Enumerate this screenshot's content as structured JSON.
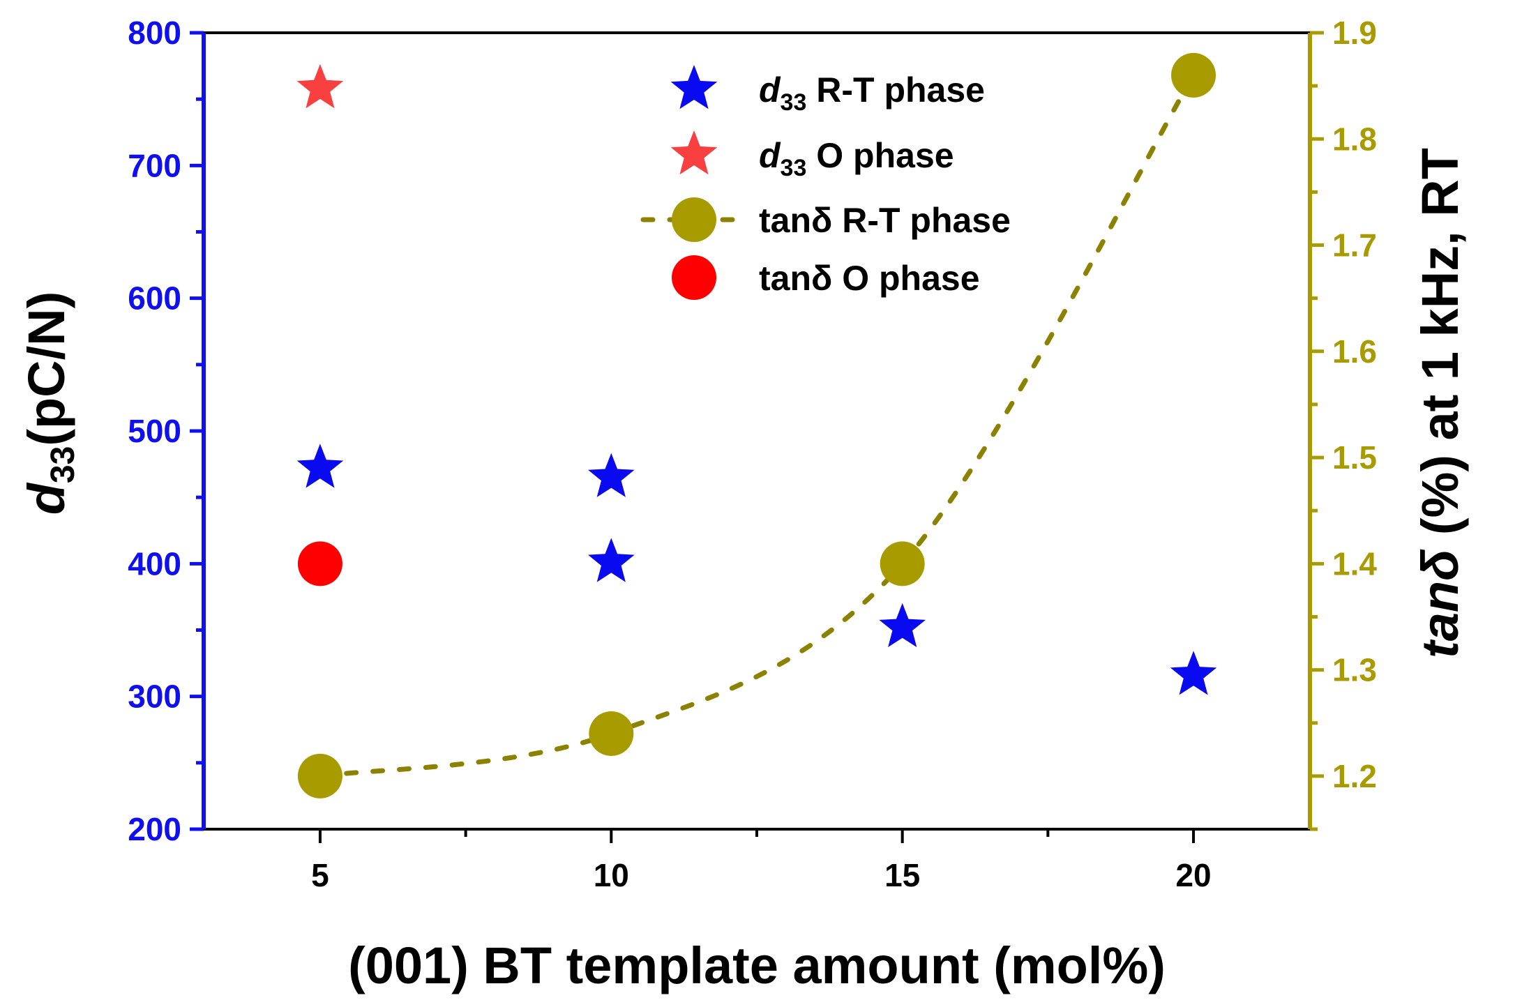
{
  "chart_data": {
    "type": "scatter",
    "xlabel": "(001) BT template amount (mol%)",
    "ylabel_left_symbol": "d",
    "ylabel_left_sub": "33",
    "ylabel_left_rest": "(pC/N)",
    "ylabel_right_symbol": "tanδ",
    "ylabel_right_rest": " (%) at 1 kHz, RT",
    "x_ticks": [
      "5",
      "10",
      "15",
      "20"
    ],
    "x_tick_values": [
      5,
      10,
      15,
      20
    ],
    "xlim": [
      3,
      22
    ],
    "ylim_left": [
      200,
      800
    ],
    "y_left_ticks": [
      "200",
      "300",
      "400",
      "500",
      "600",
      "700",
      "800"
    ],
    "y_left_tick_values": [
      200,
      300,
      400,
      500,
      600,
      700,
      800
    ],
    "ylim_right": [
      1.15,
      1.9
    ],
    "y_right_ticks": [
      "1.2",
      "1.3",
      "1.4",
      "1.5",
      "1.6",
      "1.7",
      "1.8",
      "1.9"
    ],
    "y_right_tick_values": [
      1.2,
      1.3,
      1.4,
      1.5,
      1.6,
      1.7,
      1.8,
      1.9
    ],
    "series": [
      {
        "name": "d33 R-T phase",
        "legend_symbol": "d",
        "legend_sub": "33",
        "legend_rest": " R-T phase",
        "marker": "star",
        "color": "#0a0af0",
        "axis": "left",
        "points": [
          [
            5,
            472
          ],
          [
            10,
            465
          ],
          [
            10,
            401
          ],
          [
            15,
            352
          ],
          [
            20,
            316
          ]
        ]
      },
      {
        "name": "d33 O phase",
        "legend_symbol": "d",
        "legend_sub": "33",
        "legend_rest": " O phase",
        "marker": "star",
        "color": "#f84040",
        "axis": "left",
        "points": [
          [
            5,
            758
          ]
        ]
      },
      {
        "name": "tanδ R-T phase",
        "legend_label": "tanδ R-T phase",
        "marker": "circle",
        "color": "#a89b00",
        "axis": "right",
        "dotted_trend": true,
        "points": [
          [
            5,
            1.2
          ],
          [
            10,
            1.24
          ],
          [
            15,
            1.4
          ],
          [
            20,
            1.86
          ]
        ]
      },
      {
        "name": "tanδ O phase",
        "legend_label": "tanδ O phase",
        "marker": "circle",
        "color": "#ff0000",
        "axis": "right",
        "points": [
          [
            5,
            1.4
          ]
        ]
      }
    ],
    "legend_position": "top-center",
    "colors": {
      "left_axis": "#1010ee",
      "right_axis": "#a89b00",
      "frame": "#000000"
    }
  }
}
